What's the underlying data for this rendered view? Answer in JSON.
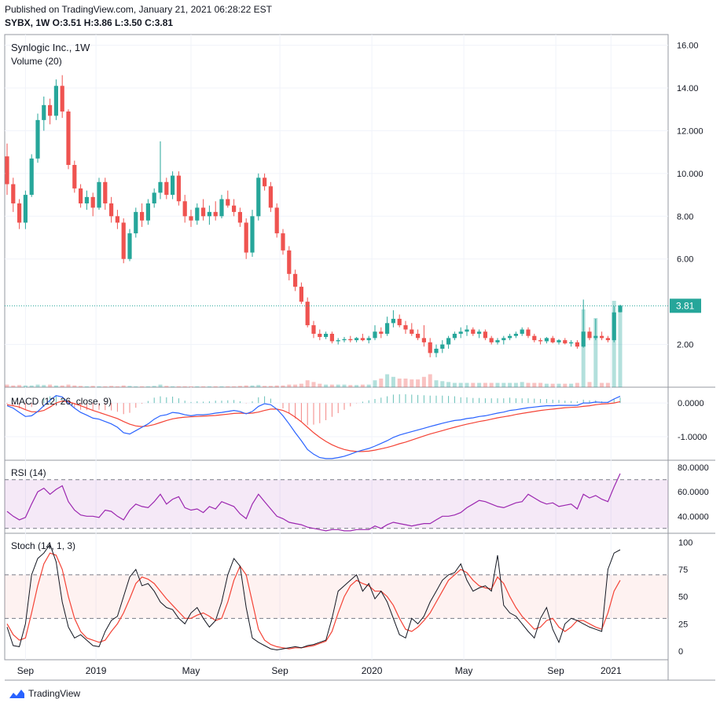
{
  "header": {
    "published": "Published on TradingView.com, January 21, 2021 06:28:22 EST",
    "ohlc": "SYBX, 1W  O:3.51  H:3.86  L:3.50  C:3.81"
  },
  "footer": {
    "brand": "TradingView"
  },
  "chart_data": {
    "type": "candlestick",
    "title": "Synlogic Inc., 1W",
    "subtitle": "Volume (20)",
    "last_price_label": "3.81",
    "last_price": 3.81,
    "colors": {
      "up": "#26a69a",
      "down": "#ef5350",
      "macd": "#2962ff",
      "signal": "#f44336",
      "rsi": "#9c27b0",
      "stoch_k": "#131722",
      "stoch_d": "#f44336"
    },
    "x_ticks": [
      "Sep",
      "2019",
      "May",
      "Sep",
      "2020",
      "May",
      "Sep",
      "2021"
    ],
    "price_axis": {
      "ticks": [
        "16.00",
        "14.00",
        "12.000",
        "10.000",
        "8.00",
        "6.00",
        "2.00"
      ],
      "range": [
        0,
        16.5
      ]
    },
    "candles": [
      [
        10.8,
        11.4,
        9.0,
        9.5
      ],
      [
        9.5,
        9.8,
        8.2,
        8.6
      ],
      [
        8.6,
        8.8,
        7.4,
        7.7
      ],
      [
        7.7,
        9.2,
        7.4,
        9.0
      ],
      [
        9.0,
        10.9,
        8.9,
        10.7
      ],
      [
        10.7,
        12.8,
        10.5,
        12.5
      ],
      [
        12.5,
        13.6,
        12.0,
        13.2
      ],
      [
        13.2,
        13.5,
        12.3,
        12.7
      ],
      [
        12.7,
        14.4,
        12.5,
        14.1
      ],
      [
        14.1,
        14.6,
        12.6,
        12.9
      ],
      [
        12.9,
        13.0,
        10.2,
        10.4
      ],
      [
        10.4,
        10.6,
        9.1,
        9.3
      ],
      [
        9.3,
        9.5,
        8.4,
        8.6
      ],
      [
        8.6,
        9.2,
        8.3,
        8.9
      ],
      [
        8.9,
        9.1,
        8.0,
        8.4
      ],
      [
        8.4,
        9.8,
        8.3,
        9.6
      ],
      [
        9.6,
        9.8,
        8.3,
        8.6
      ],
      [
        8.6,
        8.9,
        7.7,
        8.0
      ],
      [
        8.0,
        8.3,
        7.4,
        7.7
      ],
      [
        7.7,
        7.9,
        5.8,
        6.0
      ],
      [
        6.0,
        7.4,
        5.9,
        7.2
      ],
      [
        7.2,
        8.4,
        7.0,
        8.2
      ],
      [
        8.2,
        8.6,
        7.5,
        7.8
      ],
      [
        7.8,
        8.8,
        7.6,
        8.6
      ],
      [
        8.6,
        9.3,
        8.4,
        9.1
      ],
      [
        9.1,
        11.5,
        8.8,
        9.6
      ],
      [
        9.6,
        9.8,
        8.8,
        9.0
      ],
      [
        9.0,
        10.1,
        8.8,
        9.9
      ],
      [
        9.9,
        10.1,
        8.5,
        8.7
      ],
      [
        8.7,
        9.0,
        7.7,
        8.0
      ],
      [
        8.0,
        8.3,
        7.5,
        7.8
      ],
      [
        7.8,
        8.6,
        7.6,
        8.4
      ],
      [
        8.4,
        8.8,
        7.8,
        8.0
      ],
      [
        8.0,
        8.5,
        7.6,
        8.2
      ],
      [
        8.2,
        8.7,
        7.8,
        8.0
      ],
      [
        8.0,
        9.0,
        7.9,
        8.8
      ],
      [
        8.8,
        9.2,
        8.4,
        8.5
      ],
      [
        8.5,
        8.8,
        8.0,
        8.2
      ],
      [
        8.2,
        8.4,
        7.5,
        7.7
      ],
      [
        7.7,
        7.9,
        6.0,
        6.3
      ],
      [
        6.3,
        8.3,
        6.1,
        8.0
      ],
      [
        8.0,
        10.0,
        7.8,
        9.8
      ],
      [
        9.8,
        10.0,
        9.2,
        9.4
      ],
      [
        9.4,
        9.6,
        8.2,
        8.4
      ],
      [
        8.4,
        8.6,
        7.0,
        7.2
      ],
      [
        7.2,
        7.4,
        6.2,
        6.4
      ],
      [
        6.4,
        6.6,
        5.0,
        5.3
      ],
      [
        5.3,
        5.5,
        4.5,
        4.7
      ],
      [
        4.7,
        4.9,
        3.9,
        4.0
      ],
      [
        4.0,
        4.2,
        2.8,
        2.9
      ],
      [
        2.9,
        3.1,
        2.3,
        2.5
      ],
      [
        2.5,
        2.7,
        2.2,
        2.35
      ],
      [
        2.35,
        2.6,
        2.25,
        2.5
      ],
      [
        2.5,
        2.6,
        2.05,
        2.15
      ],
      [
        2.15,
        2.3,
        2.0,
        2.2
      ],
      [
        2.2,
        2.35,
        2.1,
        2.25
      ],
      [
        2.25,
        2.4,
        2.1,
        2.2
      ],
      [
        2.2,
        2.35,
        2.1,
        2.3
      ],
      [
        2.3,
        2.5,
        2.15,
        2.2
      ],
      [
        2.2,
        2.4,
        2.05,
        2.3
      ],
      [
        2.3,
        2.9,
        2.2,
        2.6
      ],
      [
        2.6,
        2.8,
        2.3,
        2.5
      ],
      [
        2.5,
        3.3,
        2.4,
        3.0
      ],
      [
        3.0,
        3.6,
        2.8,
        3.2
      ],
      [
        3.2,
        3.4,
        2.8,
        2.9
      ],
      [
        2.9,
        3.1,
        2.5,
        2.7
      ],
      [
        2.7,
        3.0,
        2.4,
        2.5
      ],
      [
        2.5,
        2.7,
        2.2,
        2.3
      ],
      [
        2.3,
        2.9,
        1.9,
        2.1
      ],
      [
        2.1,
        2.3,
        1.4,
        1.6
      ],
      [
        1.6,
        2.0,
        1.4,
        1.8
      ],
      [
        1.8,
        2.2,
        1.6,
        2.0
      ],
      [
        2.0,
        2.4,
        1.8,
        2.3
      ],
      [
        2.3,
        2.6,
        2.2,
        2.5
      ],
      [
        2.5,
        2.8,
        2.3,
        2.6
      ],
      [
        2.6,
        2.9,
        2.4,
        2.7
      ],
      [
        2.7,
        2.8,
        2.4,
        2.5
      ],
      [
        2.5,
        2.7,
        2.3,
        2.6
      ],
      [
        2.6,
        2.7,
        2.2,
        2.3
      ],
      [
        2.3,
        2.4,
        2.0,
        2.1
      ],
      [
        2.1,
        2.3,
        2.0,
        2.2
      ],
      [
        2.2,
        2.4,
        2.0,
        2.3
      ],
      [
        2.3,
        2.5,
        2.2,
        2.4
      ],
      [
        2.4,
        2.6,
        2.3,
        2.5
      ],
      [
        2.5,
        2.8,
        2.4,
        2.7
      ],
      [
        2.7,
        2.8,
        2.3,
        2.4
      ],
      [
        2.4,
        2.5,
        2.1,
        2.2
      ],
      [
        2.2,
        2.3,
        2.0,
        2.15
      ],
      [
        2.15,
        2.35,
        2.05,
        2.3
      ],
      [
        2.3,
        2.4,
        2.05,
        2.1
      ],
      [
        2.1,
        2.25,
        2.0,
        2.2
      ],
      [
        2.2,
        2.3,
        2.0,
        2.05
      ],
      [
        2.05,
        2.2,
        1.9,
        2.1
      ],
      [
        2.1,
        2.2,
        1.8,
        1.9
      ],
      [
        1.9,
        4.1,
        1.85,
        2.6
      ],
      [
        2.6,
        2.8,
        2.2,
        2.3
      ],
      [
        2.3,
        3.2,
        2.2,
        2.4
      ],
      [
        2.4,
        2.6,
        2.2,
        2.3
      ],
      [
        2.3,
        2.4,
        2.1,
        2.2
      ],
      [
        2.2,
        3.8,
        2.1,
        3.5
      ],
      [
        3.51,
        3.86,
        3.5,
        3.81
      ]
    ],
    "volume": [
      0.3,
      0.2,
      0.25,
      0.2,
      0.2,
      0.3,
      0.25,
      0.3,
      0.2,
      0.2,
      0.3,
      0.2,
      0.15,
      0.1,
      0.15,
      0.1,
      0.1,
      0.15,
      0.1,
      0.2,
      0.15,
      0.1,
      0.1,
      0.1,
      0.15,
      0.3,
      0.15,
      0.1,
      0.1,
      0.1,
      0.1,
      0.1,
      0.1,
      0.1,
      0.1,
      0.1,
      0.1,
      0.1,
      0.15,
      0.2,
      0.2,
      0.25,
      0.15,
      0.15,
      0.2,
      0.2,
      0.3,
      0.3,
      0.4,
      0.8,
      0.6,
      0.4,
      0.3,
      0.3,
      0.3,
      0.3,
      0.25,
      0.25,
      0.3,
      0.3,
      0.8,
      1.0,
      1.5,
      1.2,
      1.0,
      1.0,
      0.9,
      0.9,
      1.2,
      1.5,
      0.8,
      0.7,
      0.6,
      0.5,
      0.5,
      0.5,
      0.5,
      0.5,
      0.5,
      0.5,
      0.5,
      0.5,
      0.5,
      0.5,
      0.6,
      0.5,
      0.5,
      0.5,
      0.4,
      0.4,
      0.4,
      0.4,
      0.4,
      0.5,
      9.0,
      0.6,
      8.0,
      0.5,
      0.5,
      10.0,
      9.5
    ],
    "indicators": {
      "macd": {
        "label": "MACD (12, 26, close, 9)",
        "ticks": [
          "0.0000",
          "-1.0000"
        ],
        "range": [
          -1.7,
          0.4
        ],
        "macd_line": [
          -0.08,
          -0.15,
          -0.28,
          -0.4,
          -0.38,
          -0.25,
          -0.08,
          0.08,
          0.22,
          0.18,
          0.0,
          -0.15,
          -0.28,
          -0.36,
          -0.45,
          -0.48,
          -0.55,
          -0.62,
          -0.72,
          -0.88,
          -0.92,
          -0.82,
          -0.72,
          -0.62,
          -0.48,
          -0.38,
          -0.35,
          -0.28,
          -0.3,
          -0.35,
          -0.38,
          -0.35,
          -0.35,
          -0.33,
          -0.3,
          -0.28,
          -0.25,
          -0.22,
          -0.25,
          -0.32,
          -0.25,
          -0.1,
          -0.02,
          -0.05,
          -0.18,
          -0.38,
          -0.62,
          -0.88,
          -1.12,
          -1.38,
          -1.52,
          -1.62,
          -1.65,
          -1.65,
          -1.62,
          -1.58,
          -1.52,
          -1.45,
          -1.4,
          -1.35,
          -1.28,
          -1.2,
          -1.12,
          -1.02,
          -0.95,
          -0.9,
          -0.85,
          -0.8,
          -0.75,
          -0.7,
          -0.65,
          -0.6,
          -0.56,
          -0.52,
          -0.5,
          -0.46,
          -0.44,
          -0.4,
          -0.38,
          -0.34,
          -0.3,
          -0.27,
          -0.22,
          -0.2,
          -0.17,
          -0.14,
          -0.12,
          -0.1,
          -0.08,
          -0.08,
          -0.07,
          -0.07,
          -0.07,
          -0.07,
          0.0,
          0.0,
          0.03,
          0.02,
          0.02,
          0.12,
          0.2
        ],
        "signal": [
          -0.05,
          -0.08,
          -0.12,
          -0.2,
          -0.26,
          -0.26,
          -0.22,
          -0.12,
          0.0,
          0.06,
          0.04,
          -0.02,
          -0.08,
          -0.15,
          -0.22,
          -0.28,
          -0.34,
          -0.4,
          -0.46,
          -0.55,
          -0.63,
          -0.68,
          -0.7,
          -0.68,
          -0.64,
          -0.58,
          -0.52,
          -0.47,
          -0.44,
          -0.42,
          -0.41,
          -0.4,
          -0.39,
          -0.38,
          -0.37,
          -0.35,
          -0.33,
          -0.31,
          -0.3,
          -0.31,
          -0.3,
          -0.27,
          -0.22,
          -0.18,
          -0.18,
          -0.22,
          -0.3,
          -0.42,
          -0.56,
          -0.72,
          -0.88,
          -1.02,
          -1.14,
          -1.24,
          -1.32,
          -1.38,
          -1.42,
          -1.44,
          -1.44,
          -1.43,
          -1.4,
          -1.36,
          -1.32,
          -1.27,
          -1.21,
          -1.16,
          -1.1,
          -1.04,
          -0.98,
          -0.92,
          -0.87,
          -0.82,
          -0.77,
          -0.72,
          -0.67,
          -0.63,
          -0.59,
          -0.55,
          -0.52,
          -0.48,
          -0.44,
          -0.41,
          -0.38,
          -0.34,
          -0.31,
          -0.28,
          -0.25,
          -0.22,
          -0.2,
          -0.18,
          -0.16,
          -0.14,
          -0.13,
          -0.12,
          -0.1,
          -0.08,
          -0.05,
          -0.03,
          -0.02,
          0.0,
          0.04
        ]
      },
      "rsi": {
        "label": "RSI (14)",
        "ticks": [
          "80.0000",
          "60.0000",
          "40.0000"
        ],
        "range": [
          26,
          84
        ],
        "upper": 70,
        "lower": 30,
        "values": [
          44,
          40,
          37,
          39,
          50,
          60,
          63,
          58,
          62,
          65,
          52,
          45,
          41,
          40,
          40,
          39,
          45,
          44,
          40,
          37,
          45,
          50,
          48,
          47,
          52,
          58,
          50,
          54,
          56,
          47,
          45,
          46,
          43,
          48,
          46,
          52,
          50,
          48,
          42,
          38,
          50,
          58,
          52,
          46,
          40,
          38,
          35,
          34,
          33,
          31,
          30,
          29,
          28,
          29,
          29,
          28,
          28,
          29,
          29,
          29,
          32,
          30,
          33,
          35,
          34,
          33,
          32,
          33,
          34,
          34,
          37,
          40,
          40,
          41,
          43,
          47,
          50,
          53,
          52,
          50,
          48,
          47,
          49,
          51,
          52,
          58,
          55,
          52,
          50,
          51,
          48,
          49,
          50,
          46,
          58,
          55,
          57,
          54,
          52,
          64,
          75
        ]
      },
      "stoch": {
        "label": "Stoch (14, 1, 3)",
        "ticks": [
          "100",
          "75",
          "50",
          "25",
          "0"
        ],
        "range": [
          -8,
          106
        ],
        "upper": 70,
        "lower": 30,
        "k": [
          22,
          5,
          4,
          25,
          70,
          85,
          90,
          98,
          82,
          45,
          22,
          12,
          15,
          10,
          5,
          4,
          18,
          28,
          32,
          50,
          68,
          75,
          60,
          62,
          55,
          45,
          40,
          38,
          30,
          25,
          35,
          40,
          30,
          22,
          28,
          45,
          70,
          85,
          78,
          40,
          12,
          8,
          5,
          2,
          1,
          2,
          3,
          4,
          3,
          5,
          6,
          8,
          10,
          30,
          55,
          60,
          65,
          70,
          55,
          62,
          48,
          55,
          45,
          30,
          15,
          12,
          30,
          25,
          32,
          45,
          55,
          65,
          70,
          72,
          80,
          65,
          55,
          58,
          60,
          55,
          88,
          42,
          35,
          32,
          25,
          18,
          12,
          30,
          40,
          20,
          8,
          25,
          30,
          28,
          25,
          22,
          20,
          18,
          75,
          90,
          93
        ],
        "d": [
          25,
          15,
          10,
          12,
          35,
          60,
          80,
          90,
          88,
          75,
          50,
          30,
          18,
          12,
          10,
          8,
          10,
          18,
          25,
          35,
          48,
          62,
          68,
          66,
          62,
          55,
          48,
          42,
          36,
          30,
          30,
          33,
          35,
          32,
          28,
          30,
          45,
          65,
          78,
          70,
          45,
          20,
          10,
          6,
          4,
          3,
          2,
          3,
          3,
          4,
          5,
          7,
          9,
          18,
          35,
          50,
          60,
          65,
          62,
          60,
          55,
          55,
          50,
          42,
          30,
          20,
          18,
          22,
          28,
          35,
          45,
          55,
          65,
          70,
          75,
          72,
          65,
          60,
          58,
          57,
          68,
          62,
          50,
          40,
          32,
          26,
          20,
          22,
          28,
          30,
          22,
          18,
          22,
          28,
          28,
          25,
          22,
          20,
          35,
          55,
          65
        ]
      }
    }
  }
}
